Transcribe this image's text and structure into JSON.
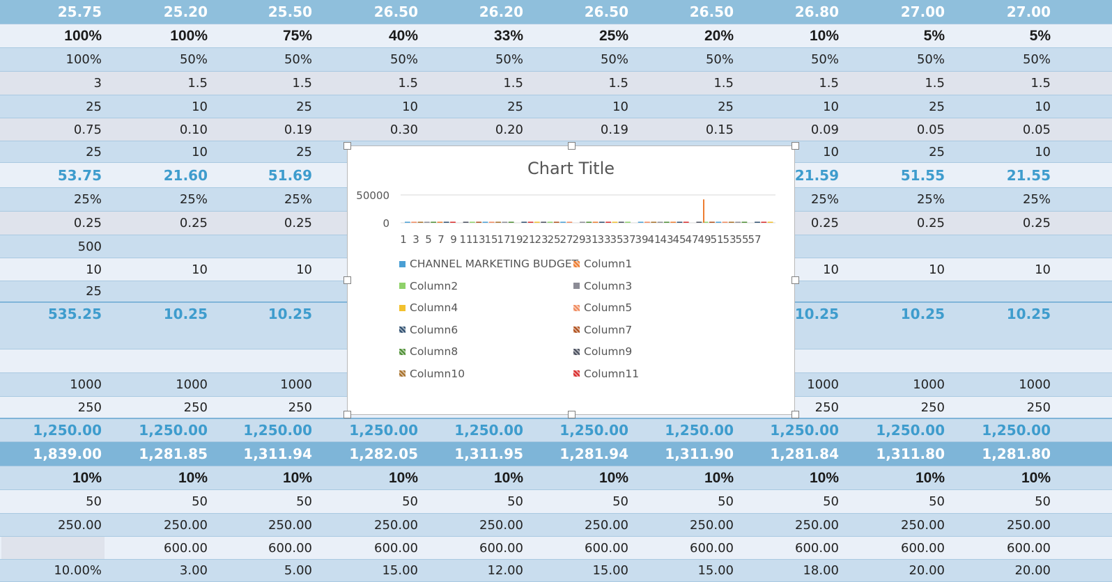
{
  "sheet": {
    "rows": [
      {
        "style": "top",
        "cells": [
          "25.75",
          "25.20",
          "25.50",
          "26.50",
          "26.20",
          "26.50",
          "26.50",
          "26.80",
          "27.00",
          "27.00"
        ]
      },
      {
        "style": "bold",
        "cells": [
          "100%",
          "100%",
          "75%",
          "40%",
          "33%",
          "25%",
          "20%",
          "10%",
          "5%",
          "5%"
        ]
      },
      {
        "style": "normal",
        "cells": [
          "100%",
          "50%",
          "50%",
          "50%",
          "50%",
          "50%",
          "50%",
          "50%",
          "50%",
          "50%"
        ]
      },
      {
        "style": "normal",
        "cells": [
          "3",
          "1.5",
          "1.5",
          "1.5",
          "1.5",
          "1.5",
          "1.5",
          "1.5",
          "1.5",
          "1.5"
        ]
      },
      {
        "style": "normal",
        "cells": [
          "25",
          "10",
          "25",
          "10",
          "25",
          "10",
          "25",
          "10",
          "25",
          "10"
        ]
      },
      {
        "style": "normal",
        "cells": [
          "0.75",
          "0.10",
          "0.19",
          "0.30",
          "0.20",
          "0.19",
          "0.15",
          "0.09",
          "0.05",
          "0.05"
        ]
      },
      {
        "style": "normal",
        "cells": [
          "25",
          "10",
          "25",
          "",
          "",
          "",
          "",
          "10",
          "25",
          "10"
        ]
      },
      {
        "style": "accent",
        "cells": [
          "53.75",
          "21.60",
          "51.69",
          "",
          "",
          "",
          "",
          "21.59",
          "51.55",
          "21.55"
        ]
      },
      {
        "style": "normal",
        "cells": [
          "25%",
          "25%",
          "25%",
          "",
          "",
          "",
          "",
          "25%",
          "25%",
          "25%"
        ]
      },
      {
        "style": "normal",
        "cells": [
          "0.25",
          "0.25",
          "0.25",
          "",
          "",
          "",
          "",
          "0.25",
          "0.25",
          "0.25"
        ]
      },
      {
        "style": "normal",
        "cells": [
          "500",
          "",
          "",
          "",
          "",
          "",
          "",
          "",
          "",
          ""
        ]
      },
      {
        "style": "normal",
        "cells": [
          "10",
          "10",
          "10",
          "",
          "",
          "",
          "",
          "10",
          "10",
          "10"
        ]
      },
      {
        "style": "normal",
        "cells": [
          "25",
          "",
          "",
          "",
          "",
          "",
          "",
          "",
          "",
          ""
        ]
      },
      {
        "style": "accent",
        "cells": [
          "535.25",
          "10.25",
          "10.25",
          "",
          "",
          "",
          "",
          "10.25",
          "10.25",
          "10.25"
        ]
      },
      {
        "style": "normal",
        "cells": [
          "",
          "",
          "",
          "",
          "",
          "",
          "",
          "",
          "",
          ""
        ]
      },
      {
        "style": "normal",
        "cells": [
          "1000",
          "1000",
          "1000",
          "",
          "",
          "",
          "",
          "1000",
          "1000",
          "1000"
        ]
      },
      {
        "style": "normal",
        "cells": [
          "250",
          "250",
          "250",
          "",
          "",
          "",
          "",
          "250",
          "250",
          "250"
        ]
      },
      {
        "style": "accent",
        "cells": [
          "1,250.00",
          "1,250.00",
          "1,250.00",
          "1,250.00",
          "1,250.00",
          "1,250.00",
          "1,250.00",
          "1,250.00",
          "1,250.00",
          "1,250.00"
        ]
      },
      {
        "style": "white",
        "cells": [
          "1,839.00",
          "1,281.85",
          "1,311.94",
          "1,282.05",
          "1,311.95",
          "1,281.94",
          "1,311.90",
          "1,281.84",
          "1,311.80",
          "1,281.80"
        ]
      },
      {
        "style": "bold",
        "cells": [
          "10%",
          "10%",
          "10%",
          "10%",
          "10%",
          "10%",
          "10%",
          "10%",
          "10%",
          "10%"
        ]
      },
      {
        "style": "normal",
        "cells": [
          "50",
          "50",
          "50",
          "50",
          "50",
          "50",
          "50",
          "50",
          "50",
          "50"
        ]
      },
      {
        "style": "normal",
        "cells": [
          "250.00",
          "250.00",
          "250.00",
          "250.00",
          "250.00",
          "250.00",
          "250.00",
          "250.00",
          "250.00",
          "250.00"
        ]
      },
      {
        "style": "normal",
        "cells": [
          "",
          "600.00",
          "600.00",
          "600.00",
          "600.00",
          "600.00",
          "600.00",
          "600.00",
          "600.00",
          "600.00"
        ]
      },
      {
        "style": "normal",
        "cells": [
          "10.00%",
          "3.00",
          "5.00",
          "15.00",
          "12.00",
          "15.00",
          "15.00",
          "18.00",
          "20.00",
          "20.00"
        ]
      }
    ]
  },
  "chart": {
    "title": "Chart Title",
    "y_ticks": [
      "50000",
      "0"
    ],
    "x_tick_text": "1  3  5  7  9 11131517192123252729313335373941434547495153555 7",
    "legend": [
      {
        "label": "CHANNEL MARKETING BUDGET",
        "color": "#4a9fd4"
      },
      {
        "label": "Column1",
        "color": "#ed7d31"
      },
      {
        "label": "Column2",
        "color": "#8fd16a"
      },
      {
        "label": "Column3",
        "color": "#8c8c96"
      },
      {
        "label": "Column4",
        "color": "#f2c12e"
      },
      {
        "label": "Column5",
        "color": "#f08a5d"
      },
      {
        "label": "Column6",
        "color": "#2f4f6f"
      },
      {
        "label": "Column7",
        "color": "#b0501c"
      },
      {
        "label": "Column8",
        "color": "#4e8f34"
      },
      {
        "label": "Column9",
        "color": "#4a4f5e"
      },
      {
        "label": "Column10",
        "color": "#a7702a"
      },
      {
        "label": "Column11",
        "color": "#d92b2b"
      }
    ]
  },
  "chart_data": {
    "type": "bar",
    "title": "Chart Title",
    "xlabel": "",
    "ylabel": "",
    "ylim": [
      0,
      50000
    ],
    "y_ticks": [
      0,
      50000
    ],
    "x_categories": [
      1,
      3,
      5,
      7,
      9,
      11,
      13,
      15,
      17,
      19,
      21,
      23,
      25,
      27,
      29,
      31,
      33,
      35,
      37,
      39,
      41,
      43,
      45,
      47,
      49,
      51,
      53,
      55,
      57
    ],
    "series_names": [
      "CHANNEL MARKETING BUDGET",
      "Column1",
      "Column2",
      "Column3",
      "Column4",
      "Column5",
      "Column6",
      "Column7",
      "Column8",
      "Column9",
      "Column10",
      "Column11"
    ],
    "notable_spike": {
      "series": "Column1",
      "x": 47,
      "value": 42000
    },
    "legend_position": "bottom",
    "grid": true
  }
}
